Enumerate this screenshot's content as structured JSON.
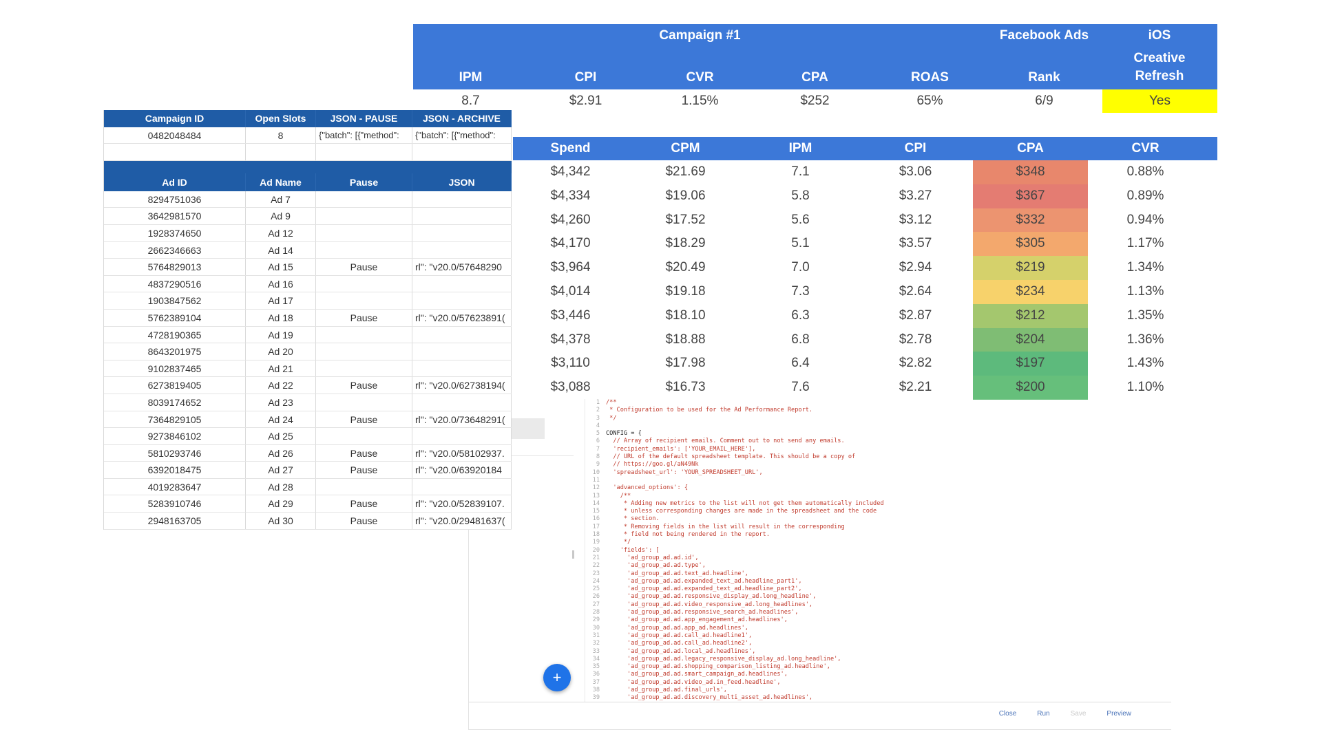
{
  "summary": {
    "group_titles": {
      "campaign": "Campaign #1",
      "facebook": "Facebook Ads",
      "ios": "iOS"
    },
    "headers": {
      "ipm": "IPM",
      "cpi": "CPI",
      "cvr": "CVR",
      "cpa": "CPA",
      "roas": "ROAS",
      "rank": "Rank",
      "creative_refresh": "Creative Refresh"
    },
    "values": {
      "ipm": "8.7",
      "cpi": "$2.91",
      "cvr": "1.15%",
      "cpa": "$252",
      "roas": "65%",
      "rank": "6/9",
      "creative_refresh": "Yes"
    }
  },
  "performance": {
    "columns": [
      "Spend",
      "CPM",
      "IPM",
      "CPI",
      "CPA",
      "CVR"
    ],
    "rows": [
      [
        "$4,342",
        "$21.69",
        "7.1",
        "$3.06",
        "$348",
        "0.88%"
      ],
      [
        "$4,334",
        "$19.06",
        "5.8",
        "$3.27",
        "$367",
        "0.89%"
      ],
      [
        "$4,260",
        "$17.52",
        "5.6",
        "$3.12",
        "$332",
        "0.94%"
      ],
      [
        "$4,170",
        "$18.29",
        "5.1",
        "$3.57",
        "$305",
        "1.17%"
      ],
      [
        "$3,964",
        "$20.49",
        "7.0",
        "$2.94",
        "$219",
        "1.34%"
      ],
      [
        "$4,014",
        "$19.18",
        "7.3",
        "$2.64",
        "$234",
        "1.13%"
      ],
      [
        "$3,446",
        "$18.10",
        "6.3",
        "$2.87",
        "$212",
        "1.35%"
      ],
      [
        "$4,378",
        "$18.88",
        "6.8",
        "$2.78",
        "$204",
        "1.36%"
      ],
      [
        "$3,110",
        "$17.98",
        "6.4",
        "$2.82",
        "$197",
        "1.43%"
      ],
      [
        "$3,088",
        "$16.73",
        "7.6",
        "$2.21",
        "$200",
        "1.10%"
      ]
    ],
    "cpa_colors": [
      "#e8876c",
      "#e47c72",
      "#ec9470",
      "#f3a86d",
      "#d5d16b",
      "#f7d26b",
      "#a4c76e",
      "#7fbd74",
      "#5dba7c",
      "#66bf7b"
    ]
  },
  "sheet": {
    "campaign_headers": [
      "Campaign ID",
      "Open Slots",
      "JSON - PAUSE",
      "JSON - ARCHIVE"
    ],
    "campaign_row": [
      "0482048484",
      "8",
      "{\"batch\": [{\"method\":",
      "{\"batch\": [{\"method\":"
    ],
    "ad_headers": [
      "Ad ID",
      "Ad Name",
      "Pause",
      "JSON"
    ],
    "ads": [
      [
        "8294751036",
        "Ad 7",
        "",
        ""
      ],
      [
        "3642981570",
        "Ad 9",
        "",
        ""
      ],
      [
        "1928374650",
        "Ad 12",
        "",
        ""
      ],
      [
        "2662346663",
        "Ad 14",
        "",
        ""
      ],
      [
        "5764829013",
        "Ad 15",
        "Pause",
        "rl\": \"v20.0/57648290"
      ],
      [
        "4837290516",
        "Ad 16",
        "",
        ""
      ],
      [
        "1903847562",
        "Ad 17",
        "",
        ""
      ],
      [
        "5762389104",
        "Ad 18",
        "Pause",
        "rl\": \"v20.0/57623891("
      ],
      [
        "4728190365",
        "Ad 19",
        "",
        ""
      ],
      [
        "8643201975",
        "Ad 20",
        "",
        ""
      ],
      [
        "9102837465",
        "Ad 21",
        "",
        ""
      ],
      [
        "6273819405",
        "Ad 22",
        "Pause",
        "rl\": \"v20.0/62738194("
      ],
      [
        "8039174652",
        "Ad 23",
        "",
        ""
      ],
      [
        "7364829105",
        "Ad 24",
        "Pause",
        "rl\": \"v20.0/73648291("
      ],
      [
        "9273846102",
        "Ad 25",
        "",
        ""
      ],
      [
        "5810293746",
        "Ad 26",
        "Pause",
        "rl\": \"v20.0/58102937."
      ],
      [
        "6392018475",
        "Ad 27",
        "Pause",
        "rl\": \"v20.0/63920184"
      ],
      [
        "4019283647",
        "Ad 28",
        "",
        ""
      ],
      [
        "5283910746",
        "Ad 29",
        "Pause",
        "rl\": \"v20.0/52839107."
      ],
      [
        "2948163705",
        "Ad 30",
        "Pause",
        "rl\": \"v20.0/29481637("
      ]
    ]
  },
  "editor": {
    "fab_label": "+",
    "footer": {
      "close": "Close",
      "run": "Run",
      "save": "Save",
      "preview": "Preview"
    },
    "code_lines": [
      {
        "n": "1",
        "t": "/**",
        "k": "cmt"
      },
      {
        "n": "2",
        "t": " * Configuration to be used for the Ad Performance Report.",
        "k": "cmt"
      },
      {
        "n": "3",
        "t": " */",
        "k": "cmt"
      },
      {
        "n": "4",
        "t": "",
        "k": ""
      },
      {
        "n": "5",
        "t": "CONFIG = {",
        "k": ""
      },
      {
        "n": "6",
        "t": "  // Array of recipient emails. Comment out to not send any emails.",
        "k": "cmt"
      },
      {
        "n": "7",
        "t": "  'recipient_emails': ['YOUR_EMAIL_HERE'],",
        "k": "str"
      },
      {
        "n": "8",
        "t": "  // URL of the default spreadsheet template. This should be a copy of",
        "k": "cmt"
      },
      {
        "n": "9",
        "t": "  // https://goo.gl/aN49Nk",
        "k": "cmt"
      },
      {
        "n": "10",
        "t": "  'spreadsheet_url': 'YOUR_SPREADSHEET_URL',",
        "k": "str"
      },
      {
        "n": "11",
        "t": "",
        "k": ""
      },
      {
        "n": "12",
        "t": "  'advanced_options': {",
        "k": "str"
      },
      {
        "n": "13",
        "t": "    /**",
        "k": "cmt"
      },
      {
        "n": "14",
        "t": "     * Adding new metrics to the list will not get them automatically included",
        "k": "cmt"
      },
      {
        "n": "15",
        "t": "     * unless corresponding changes are made in the spreadsheet and the code",
        "k": "cmt"
      },
      {
        "n": "16",
        "t": "     * section.",
        "k": "cmt"
      },
      {
        "n": "17",
        "t": "     * Removing fields in the list will result in the corresponding",
        "k": "cmt"
      },
      {
        "n": "18",
        "t": "     * field not being rendered in the report.",
        "k": "cmt"
      },
      {
        "n": "19",
        "t": "     */",
        "k": "cmt"
      },
      {
        "n": "20",
        "t": "    'fields': [",
        "k": "str"
      },
      {
        "n": "21",
        "t": "      'ad_group_ad.ad.id',",
        "k": "str"
      },
      {
        "n": "22",
        "t": "      'ad_group_ad.ad.type',",
        "k": "str"
      },
      {
        "n": "23",
        "t": "      'ad_group_ad.ad.text_ad.headline',",
        "k": "str"
      },
      {
        "n": "24",
        "t": "      'ad_group_ad.ad.expanded_text_ad.headline_part1',",
        "k": "str"
      },
      {
        "n": "25",
        "t": "      'ad_group_ad.ad.expanded_text_ad.headline_part2',",
        "k": "str"
      },
      {
        "n": "26",
        "t": "      'ad_group_ad.ad.responsive_display_ad.long_headline',",
        "k": "str"
      },
      {
        "n": "27",
        "t": "      'ad_group_ad.ad.video_responsive_ad.long_headlines',",
        "k": "str"
      },
      {
        "n": "28",
        "t": "      'ad_group_ad.ad.responsive_search_ad.headlines',",
        "k": "str"
      },
      {
        "n": "29",
        "t": "      'ad_group_ad.ad.app_engagement_ad.headlines',",
        "k": "str"
      },
      {
        "n": "30",
        "t": "      'ad_group_ad.ad.app_ad.headlines',",
        "k": "str"
      },
      {
        "n": "31",
        "t": "      'ad_group_ad.ad.call_ad.headline1',",
        "k": "str"
      },
      {
        "n": "32",
        "t": "      'ad_group_ad.ad.call_ad.headline2',",
        "k": "str"
      },
      {
        "n": "33",
        "t": "      'ad_group_ad.ad.local_ad.headlines',",
        "k": "str"
      },
      {
        "n": "34",
        "t": "      'ad_group_ad.ad.legacy_responsive_display_ad.long_headline',",
        "k": "str"
      },
      {
        "n": "35",
        "t": "      'ad_group_ad.ad.shopping_comparison_listing_ad.headline',",
        "k": "str"
      },
      {
        "n": "36",
        "t": "      'ad_group_ad.ad.smart_campaign_ad.headlines',",
        "k": "str"
      },
      {
        "n": "37",
        "t": "      'ad_group_ad.ad.video_ad.in_feed.headline',",
        "k": "str"
      },
      {
        "n": "38",
        "t": "      'ad_group_ad.ad.final_urls',",
        "k": "str"
      },
      {
        "n": "39",
        "t": "      'ad_group_ad.ad.discovery_multi_asset_ad.headlines',",
        "k": "str"
      }
    ]
  }
}
